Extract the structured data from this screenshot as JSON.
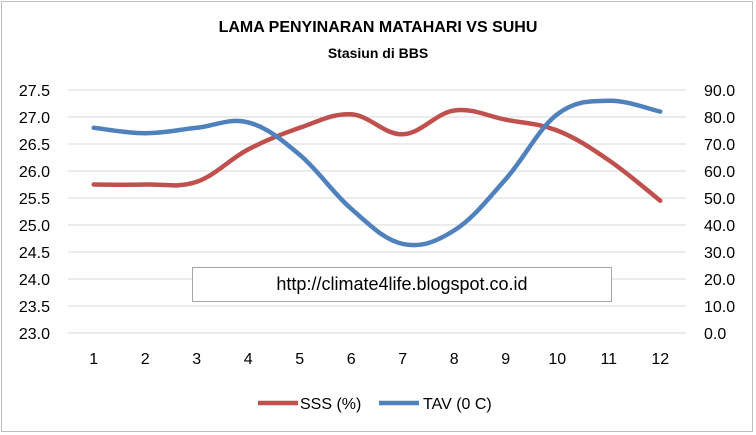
{
  "chart_data": {
    "type": "line",
    "title": "LAMA PENYINARAN MATAHARI  VS SUHU",
    "subtitle": "Stasiun di BBS",
    "categories": [
      "1",
      "2",
      "3",
      "4",
      "5",
      "6",
      "7",
      "8",
      "9",
      "10",
      "11",
      "12"
    ],
    "y_left": {
      "ylim": [
        23.0,
        27.5
      ],
      "ticks": [
        "23.0",
        "23.5",
        "24.0",
        "24.5",
        "25.0",
        "25.5",
        "26.0",
        "26.5",
        "27.0",
        "27.5"
      ]
    },
    "y_right": {
      "ylim": [
        0.0,
        90.0
      ],
      "ticks": [
        "0.0",
        "10.0",
        "20.0",
        "30.0",
        "40.0",
        "50.0",
        "60.0",
        "70.0",
        "80.0",
        "90.0"
      ]
    },
    "series": [
      {
        "name": "SSS (%)",
        "axis": "left",
        "color": "#c0504d",
        "values": [
          25.75,
          25.75,
          25.8,
          26.4,
          26.8,
          27.05,
          26.68,
          27.12,
          26.95,
          26.75,
          26.2,
          25.45
        ]
      },
      {
        "name": "TAV (0 C)",
        "axis": "right",
        "color": "#4f81bd",
        "values": [
          76,
          74,
          76,
          78,
          66,
          46,
          33,
          38,
          57,
          81,
          86,
          82
        ]
      }
    ],
    "grid": "horizontal",
    "legend": "bottom",
    "annotation": "http://climate4life.blogspot.co.id"
  }
}
